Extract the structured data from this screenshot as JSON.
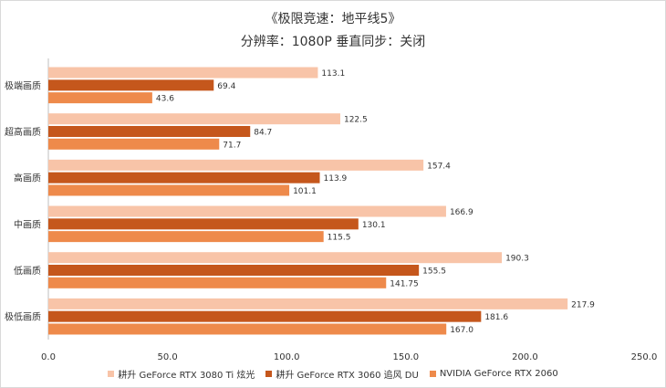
{
  "chart_data": {
    "type": "bar",
    "orientation": "horizontal",
    "title": "《极限竞速：地平线5》",
    "subtitle": "分辨率：1080P  垂直同步：关闭",
    "categories": [
      "极端画质",
      "超高画质",
      "高画质",
      "中画质",
      "低画质",
      "极低画质"
    ],
    "series": [
      {
        "name": "耕升 GeForce RTX 3080 Ti 炫光",
        "color": "#f8c4a8",
        "values": [
          113.1,
          122.5,
          157.4,
          166.9,
          190.3,
          217.9
        ],
        "labels": [
          "113.1",
          "122.5",
          "157.4",
          "166.9",
          "190.3",
          "217.9"
        ]
      },
      {
        "name": "耕升 GeForce RTX 3060 追风 DU",
        "color": "#c5571c",
        "values": [
          69.4,
          84.7,
          113.9,
          130.1,
          155.5,
          181.6
        ],
        "labels": [
          "69.4",
          "84.7",
          "113.9",
          "130.1",
          "155.5",
          "181.6"
        ]
      },
      {
        "name": "NVIDIA GeForce RTX 2060",
        "color": "#ee8a4b",
        "values": [
          43.6,
          71.7,
          101.1,
          115.5,
          141.75,
          167.0
        ],
        "labels": [
          "43.6",
          "71.7",
          "101.1",
          "115.5",
          "141.75",
          "167.0"
        ]
      }
    ],
    "xlim": [
      0,
      250
    ],
    "xticks": [
      "0.0",
      "50.0",
      "100.0",
      "150.0",
      "200.0",
      "250.0"
    ],
    "grid": false,
    "legend_position": "bottom"
  }
}
